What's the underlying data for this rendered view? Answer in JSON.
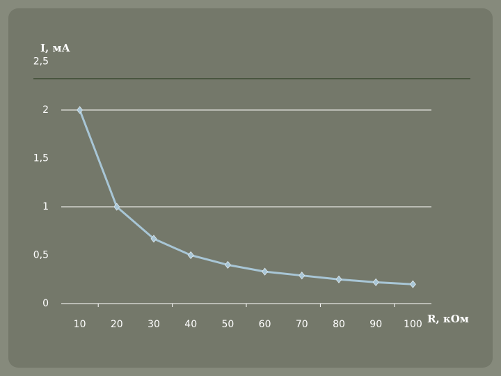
{
  "chart_data": {
    "type": "line",
    "y_axis_label": "I, мА",
    "x_axis_label": "R, кОм",
    "categories": [
      "10",
      "20",
      "30",
      "40",
      "50",
      "60",
      "70",
      "80",
      "90",
      "100"
    ],
    "series": [
      {
        "color": "#a8c6d6",
        "values": [
          2,
          1,
          0.67,
          0.5,
          0.4,
          0.33,
          0.29,
          0.25,
          0.22,
          0.2
        ]
      }
    ],
    "ylim": [
      0,
      2.5
    ],
    "yticks": [
      0,
      {
        "value": 0.5,
        "label": "0,5"
      },
      1,
      {
        "value": 1.5,
        "label": "1,5"
      },
      2,
      {
        "value": 2.5,
        "label": "2,5"
      }
    ],
    "grid_values": [
      1,
      2
    ]
  }
}
